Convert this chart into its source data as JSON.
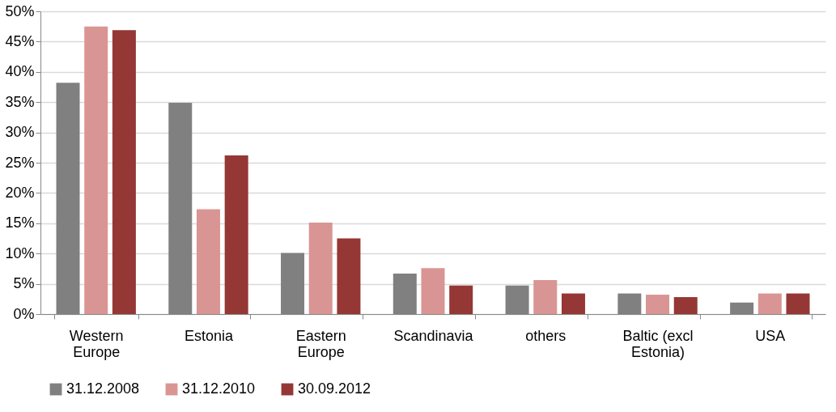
{
  "chart_data": {
    "type": "bar",
    "categories": [
      "Western\nEurope",
      "Estonia",
      "Eastern\nEurope",
      "Scandinavia",
      "others",
      "Baltic (excl\nEstonia)",
      "USA"
    ],
    "series": [
      {
        "name": "31.12.2008",
        "color": "#808080",
        "values": [
          38.2,
          34.9,
          10.1,
          6.7,
          4.7,
          3.4,
          1.9
        ]
      },
      {
        "name": "31.12.2010",
        "color": "#d99594",
        "values": [
          47.5,
          17.3,
          15.1,
          7.6,
          5.6,
          3.2,
          3.4
        ]
      },
      {
        "name": "30.09.2012",
        "color": "#953735",
        "values": [
          46.9,
          26.2,
          12.5,
          4.7,
          3.4,
          2.8,
          3.4
        ]
      }
    ],
    "ylim": [
      0,
      50
    ],
    "yticks": [
      {
        "value": 0,
        "label": "0%"
      },
      {
        "value": 5,
        "label": "5%"
      },
      {
        "value": 10,
        "label": "10%"
      },
      {
        "value": 15,
        "label": "15%"
      },
      {
        "value": 20,
        "label": "20%"
      },
      {
        "value": 25,
        "label": "25%"
      },
      {
        "value": 30,
        "label": "30%"
      },
      {
        "value": 35,
        "label": "35%"
      },
      {
        "value": 40,
        "label": "40%"
      },
      {
        "value": 45,
        "label": "45%"
      },
      {
        "value": 50,
        "label": "50%"
      }
    ],
    "grid": "y",
    "legend": "bottom"
  }
}
